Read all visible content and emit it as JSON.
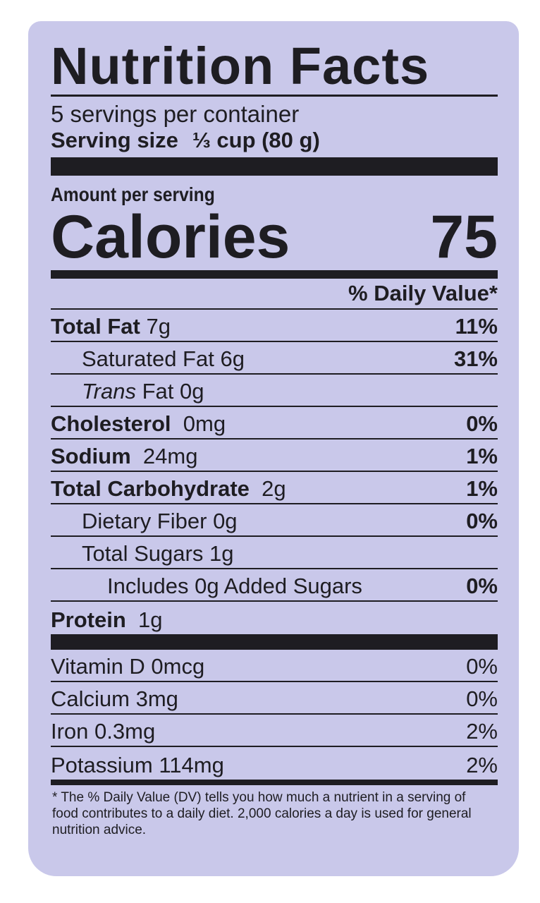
{
  "title": "Nutrition Facts",
  "servings_per_container": "5 servings per container",
  "serving_size_label": "Serving size",
  "serving_size_value": "⅓ cup (80 g)",
  "amount_per_serving": "Amount per serving",
  "calories_label": "Calories",
  "calories_value": "75",
  "daily_value_header": "% Daily Value*",
  "nutrients": [
    {
      "name": "Total Fat",
      "amount": "7g",
      "dv": "11%"
    },
    {
      "name": "Saturated Fat",
      "amount": "6g",
      "dv": "31%"
    },
    {
      "name": "Trans",
      "name_suffix": "Fat",
      "amount": "0g",
      "dv": ""
    },
    {
      "name": "Cholesterol",
      "amount": "0mg",
      "dv": "0%"
    },
    {
      "name": "Sodium",
      "amount": "24mg",
      "dv": "1%"
    },
    {
      "name": "Total Carbohydrate",
      "amount": "2g",
      "dv": "1%"
    },
    {
      "name": "Dietary Fiber",
      "amount": "0g",
      "dv": "0%"
    },
    {
      "name": "Total Sugars",
      "amount": "1g",
      "dv": ""
    },
    {
      "name": "Includes 0g Added Sugars",
      "amount": "",
      "dv": "0%"
    },
    {
      "name": "Protein",
      "amount": "1g",
      "dv": ""
    }
  ],
  "vitamins": [
    {
      "name": "Vitamin D 0mcg",
      "dv": "0%"
    },
    {
      "name": "Calcium 3mg",
      "dv": "0%"
    },
    {
      "name": "Iron 0.3mg",
      "dv": "2%"
    },
    {
      "name": "Potassium 114mg",
      "dv": "2%"
    }
  ],
  "footnote": "* The % Daily Value (DV) tells you how much a nutrient in a serving of food contributes to a daily diet. 2,000 calories a day is used for general nutrition advice.",
  "colors": {
    "label_background": "#c9c8ea",
    "ink": "#1e1d22"
  }
}
